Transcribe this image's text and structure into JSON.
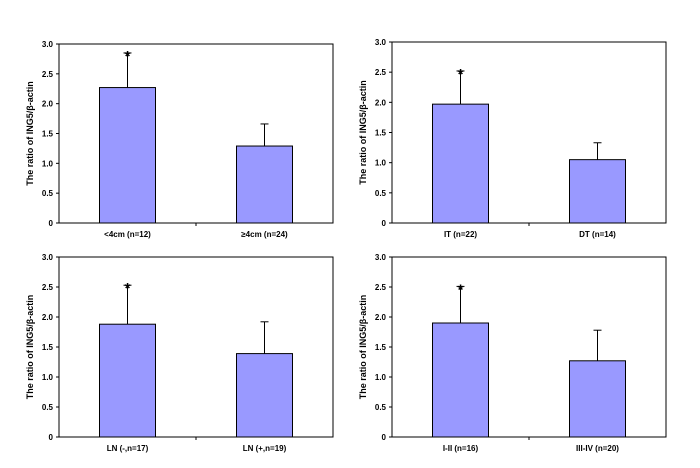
{
  "chart_data": [
    {
      "type": "bar",
      "categories": [
        "<4cm (n=12)",
        "≥4cm (n=24)"
      ],
      "values": [
        2.27,
        1.29
      ],
      "errors": [
        0.58,
        0.37
      ],
      "significance": [
        "*",
        ""
      ],
      "ylabel": "The ratio of ING5/β-actin",
      "ylim": [
        0,
        3.0
      ],
      "yticks": [
        "0",
        "0.5",
        "1.0",
        "1.5",
        "2.0",
        "2.5",
        "3.0"
      ],
      "grid": false,
      "bar_color": "#9999ff"
    },
    {
      "type": "bar",
      "categories": [
        "IT (n=22)",
        "DT (n=14)"
      ],
      "values": [
        1.97,
        1.05
      ],
      "errors": [
        0.55,
        0.28
      ],
      "significance": [
        "*",
        ""
      ],
      "ylabel": "The ratio of ING5/β-actin",
      "ylim": [
        0,
        3.0
      ],
      "yticks": [
        "0",
        "0.5",
        "1.0",
        "1.5",
        "2.0",
        "2.5",
        "3.0"
      ],
      "grid": false,
      "bar_color": "#9999ff"
    },
    {
      "type": "bar",
      "categories": [
        "LN (-,n=17)",
        "LN (+,n=19)"
      ],
      "values": [
        1.88,
        1.39
      ],
      "errors": [
        0.65,
        0.53
      ],
      "significance": [
        "*",
        ""
      ],
      "ylabel": "The ratio of ING5/β-actin",
      "ylim": [
        0,
        3.0
      ],
      "yticks": [
        "0",
        "0.5",
        "1.0",
        "1.5",
        "2.0",
        "2.5",
        "3.0"
      ],
      "grid": false,
      "bar_color": "#9999ff"
    },
    {
      "type": "bar",
      "categories": [
        "I-II (n=16)",
        "III-IV (n=20)"
      ],
      "values": [
        1.9,
        1.27
      ],
      "errors": [
        0.61,
        0.51
      ],
      "significance": [
        "*",
        ""
      ],
      "ylabel": "The ratio of ING5/β-actin",
      "ylim": [
        0,
        3.0
      ],
      "yticks": [
        "0",
        "0.5",
        "1.0",
        "1.5",
        "2.0",
        "2.5",
        "3.0"
      ],
      "grid": false,
      "bar_color": "#9999ff"
    }
  ]
}
